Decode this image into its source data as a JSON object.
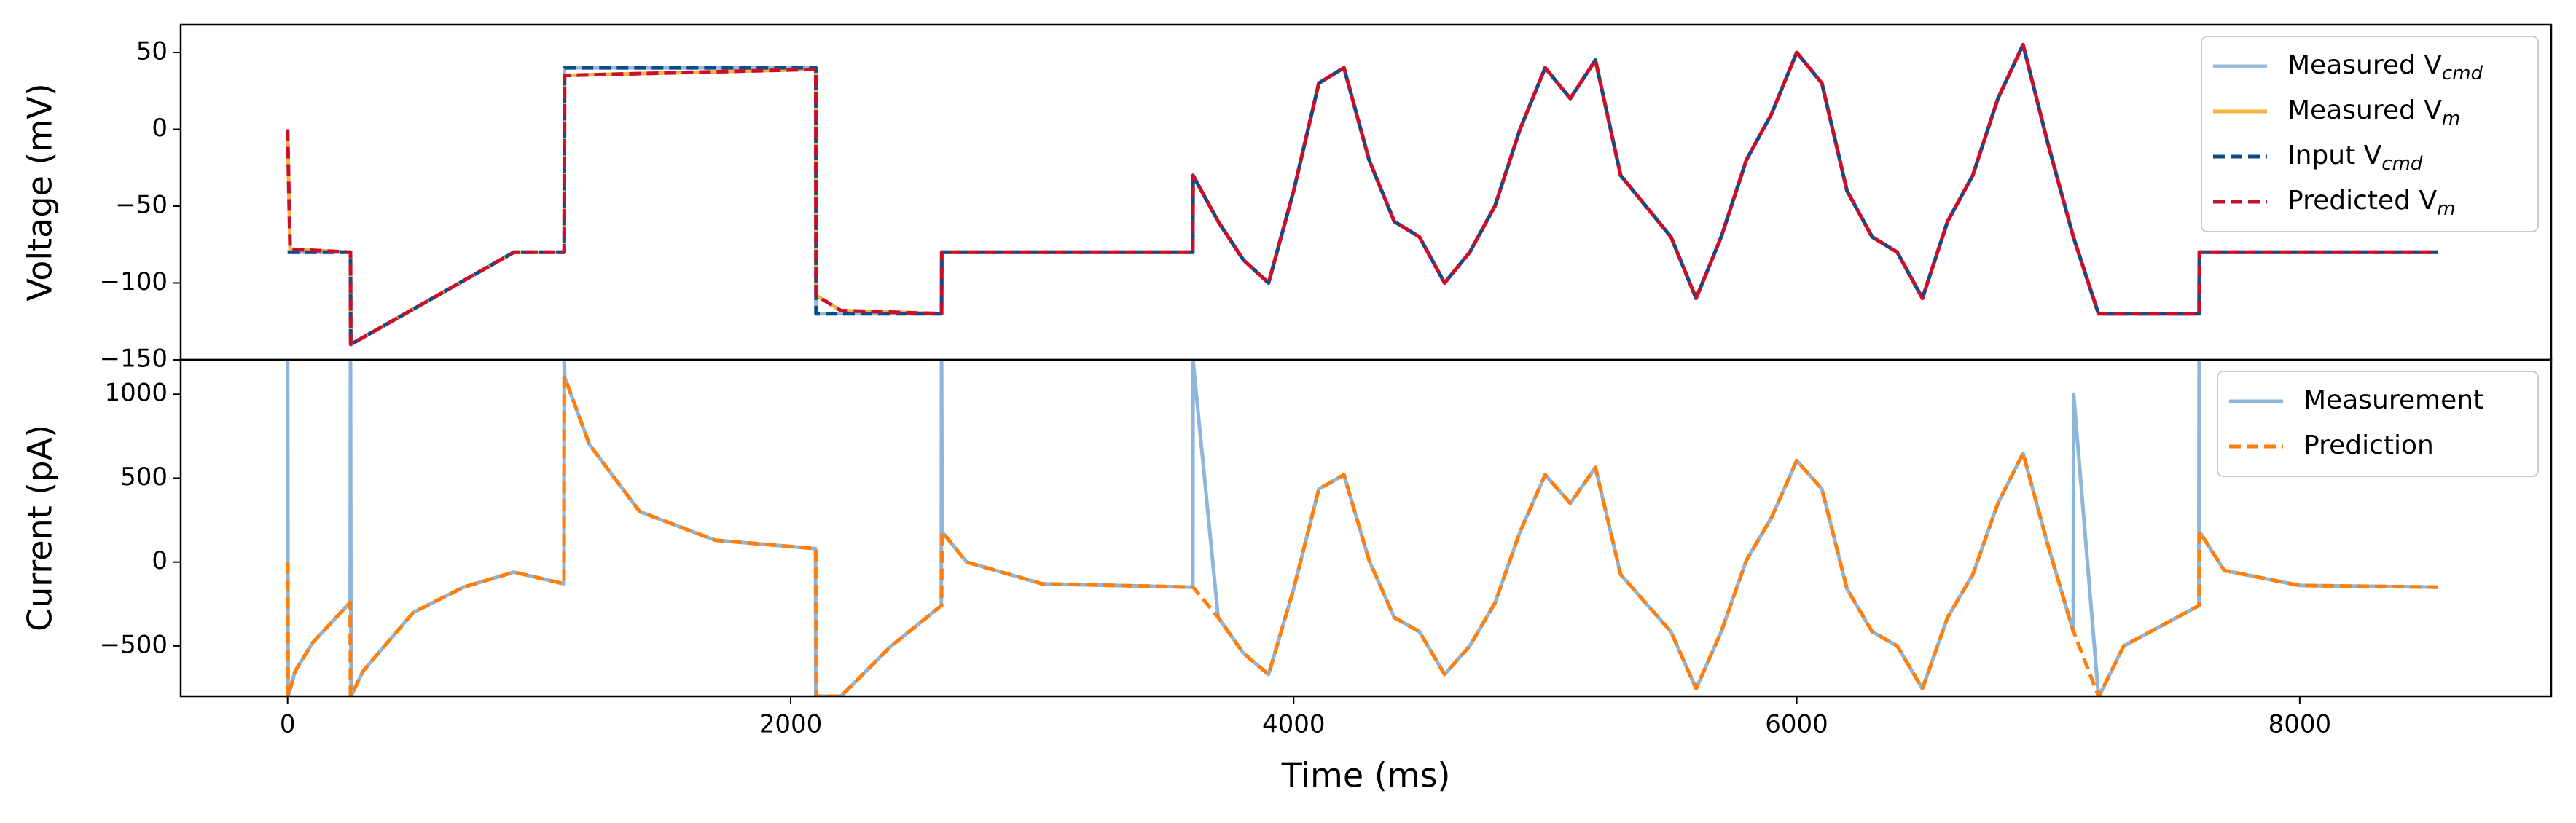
{
  "chart_data": [
    {
      "type": "line",
      "ylabel": "Voltage (mV)",
      "xlim": [
        -425,
        9000
      ],
      "ylim": [
        -150,
        68
      ],
      "yticks": [
        {
          "value": -150,
          "label": "−150"
        },
        {
          "value": -100,
          "label": "−100"
        },
        {
          "value": -50,
          "label": "−50"
        },
        0,
        50
      ],
      "legend": "upper right",
      "x": [
        0,
        10,
        250,
        251,
        900,
        1100,
        1101,
        2100,
        2101,
        2200,
        2600,
        2601,
        3599,
        3600,
        3700,
        3800,
        3900,
        4000,
        4100,
        4200,
        4300,
        4400,
        4500,
        4600,
        4700,
        4800,
        4900,
        5000,
        5100,
        5200,
        5300,
        5400,
        5500,
        5600,
        5700,
        5800,
        5900,
        6000,
        6100,
        6200,
        6300,
        6400,
        6500,
        6600,
        6700,
        6800,
        6900,
        7000,
        7100,
        7200,
        7600,
        7601,
        8550
      ],
      "series": [
        {
          "name": "Measured V",
          "subscript": "cmd",
          "color": "#9ab9d8",
          "dash": false,
          "width": 5,
          "values": [
            -80,
            -80,
            -80,
            -140,
            -80,
            -80,
            40,
            40,
            -120,
            -120,
            -120,
            -80,
            -80,
            -30,
            -60,
            -85,
            -100,
            -40,
            30,
            40,
            -20,
            -60,
            -70,
            -100,
            -80,
            -50,
            0,
            40,
            20,
            45,
            -30,
            -50,
            -70,
            -110,
            -70,
            -20,
            10,
            50,
            30,
            -40,
            -70,
            -80,
            -110,
            -60,
            -30,
            20,
            55,
            -10,
            -70,
            -120,
            -120,
            -80,
            -80
          ]
        },
        {
          "name": "Measured V",
          "subscript": "m",
          "color": "#f5b342",
          "dash": false,
          "width": 5,
          "values": [
            0,
            -78,
            -80,
            -140,
            -80,
            -80,
            35,
            39,
            -108,
            -118,
            -120,
            -80,
            -80,
            -30,
            -60,
            -85,
            -100,
            -40,
            30,
            40,
            -20,
            -60,
            -70,
            -100,
            -80,
            -50,
            0,
            40,
            20,
            45,
            -30,
            -50,
            -70,
            -110,
            -70,
            -20,
            10,
            50,
            30,
            -40,
            -70,
            -80,
            -110,
            -60,
            -30,
            20,
            55,
            -10,
            -70,
            -120,
            -120,
            -80,
            -80
          ]
        },
        {
          "name": "Input V",
          "subscript": "cmd",
          "color": "#0b4d8c",
          "dash": true,
          "width": 5,
          "values": [
            -80,
            -80,
            -80,
            -140,
            -80,
            -80,
            40,
            40,
            -120,
            -120,
            -120,
            -80,
            -80,
            -30,
            -60,
            -85,
            -100,
            -40,
            30,
            40,
            -20,
            -60,
            -70,
            -100,
            -80,
            -50,
            0,
            40,
            20,
            45,
            -30,
            -50,
            -70,
            -110,
            -70,
            -20,
            10,
            50,
            30,
            -40,
            -70,
            -80,
            -110,
            -60,
            -30,
            20,
            55,
            -10,
            -70,
            -120,
            -120,
            -80,
            -80
          ]
        },
        {
          "name": "Predicted V",
          "subscript": "m",
          "color": "#c8102e",
          "dash": true,
          "width": 5,
          "values": [
            0,
            -78,
            -80,
            -140,
            -80,
            -80,
            35,
            39,
            -108,
            -118,
            -120,
            -80,
            -80,
            -30,
            -60,
            -85,
            -100,
            -40,
            30,
            40,
            -20,
            -60,
            -70,
            -100,
            -80,
            -50,
            0,
            40,
            20,
            45,
            -30,
            -50,
            -70,
            -110,
            -70,
            -20,
            10,
            50,
            30,
            -40,
            -70,
            -80,
            -110,
            -60,
            -30,
            20,
            55,
            -10,
            -70,
            -120,
            -120,
            -80,
            -80
          ]
        }
      ]
    },
    {
      "type": "line",
      "ylabel": "Current (pA)",
      "xlabel": "Time (ms)",
      "xlim": [
        -425,
        9000
      ],
      "ylim": [
        -800,
        1205
      ],
      "xticks": [
        0,
        2000,
        4000,
        6000,
        8000
      ],
      "yticks": [
        {
          "value": -500,
          "label": "−500"
        },
        0,
        500,
        1000
      ],
      "legend": "upper right",
      "x": [
        0,
        2,
        30,
        100,
        249,
        250,
        252,
        300,
        500,
        700,
        900,
        1099,
        1100,
        1102,
        1200,
        1400,
        1700,
        2099,
        2100,
        2102,
        2200,
        2400,
        2599,
        2600,
        2602,
        2700,
        3000,
        3599,
        3600,
        3700,
        3800,
        3900,
        4000,
        4100,
        4200,
        4300,
        4400,
        4500,
        4600,
        4700,
        4800,
        4900,
        5000,
        5100,
        5200,
        5300,
        5400,
        5500,
        5600,
        5700,
        5800,
        5900,
        6000,
        6100,
        6200,
        6300,
        6400,
        6500,
        6600,
        6700,
        6800,
        6900,
        7000,
        7100,
        7101,
        7200,
        7202,
        7300,
        7599,
        7600,
        7602,
        7700,
        8000,
        8550
      ],
      "series": [
        {
          "name": "Measurement",
          "color": "#8db6dc",
          "dash": false,
          "width": 5,
          "values": [
            1200,
            -800,
            -650,
            -480,
            -240,
            1200,
            -800,
            -650,
            -300,
            -150,
            -60,
            -130,
            1200,
            1100,
            700,
            300,
            130,
            80,
            -800,
            -800,
            -800,
            -500,
            -260,
            1200,
            180,
            0,
            -130,
            -150,
            1200,
            -330,
            -543,
            -670,
            -160,
            435,
            520,
            10,
            -330,
            -415,
            -670,
            -500,
            -245,
            180,
            520,
            350,
            563,
            -75,
            -245,
            -415,
            -755,
            -415,
            10,
            265,
            605,
            435,
            -160,
            -415,
            -500,
            -755,
            -330,
            -75,
            350,
            648,
            95,
            -415,
            1000,
            -800,
            -800,
            -500,
            -260,
            1200,
            180,
            -50,
            -140,
            -150
          ]
        },
        {
          "name": "Prediction",
          "color": "#ff7f0e",
          "dash": true,
          "width": 5,
          "values": [
            0,
            -800,
            -650,
            -480,
            -240,
            -800,
            -800,
            -650,
            -300,
            -150,
            -60,
            -130,
            1100,
            1100,
            700,
            300,
            130,
            80,
            80,
            -800,
            -800,
            -500,
            -260,
            -260,
            180,
            0,
            -130,
            -150,
            -150,
            -330,
            -543,
            -670,
            -160,
            435,
            520,
            10,
            -330,
            -415,
            -670,
            -500,
            -245,
            180,
            520,
            350,
            563,
            -75,
            -245,
            -415,
            -755,
            -415,
            10,
            265,
            605,
            435,
            -160,
            -415,
            -500,
            -755,
            -330,
            -75,
            350,
            648,
            95,
            -415,
            -415,
            -800,
            -800,
            -500,
            -260,
            -260,
            180,
            -50,
            -140,
            -150
          ]
        }
      ]
    }
  ]
}
